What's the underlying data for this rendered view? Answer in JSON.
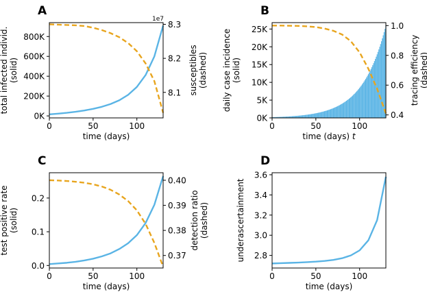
{
  "chart_data": [
    {
      "panel": "A",
      "type": "line",
      "xlabel": "time (days)",
      "ylabel": "total infected individ.\n(solid)",
      "y2label": "susceptibles\n(dashed)",
      "xlim": [
        0,
        130
      ],
      "ylim": [
        -20000,
        940000
      ],
      "y2lim": [
        8.025,
        8.305
      ],
      "xticks": [
        0,
        50,
        100
      ],
      "yticks": [
        0,
        200000,
        400000,
        600000,
        800000
      ],
      "yticklabels": [
        "0K",
        "200K",
        "400K",
        "600K",
        "800K"
      ],
      "y2ticks": [
        8.1,
        8.2,
        8.3
      ],
      "y2ticklabels": [
        "8.1",
        "8.2",
        "8.3"
      ],
      "y2offset": "1e7",
      "series": [
        {
          "name": "total infected (solid)",
          "color": "#5ab4e5",
          "style": "solid",
          "x": [
            0,
            10,
            20,
            30,
            40,
            50,
            60,
            70,
            80,
            90,
            100,
            110,
            120,
            130
          ],
          "values": [
            16000,
            23000,
            31500,
            42000,
            55000,
            71000,
            92000,
            120000,
            158000,
            212000,
            292000,
            412000,
            600000,
            910000
          ]
        },
        {
          "name": "susceptibles (dashed)",
          "color": "#e8a51e",
          "style": "dashed",
          "axis": "right",
          "x": [
            0,
            10,
            20,
            30,
            40,
            50,
            60,
            70,
            80,
            90,
            100,
            110,
            120,
            130
          ],
          "values": [
            8.3,
            8.299,
            8.298,
            8.297,
            8.295,
            8.29,
            8.283,
            8.274,
            8.262,
            8.245,
            8.221,
            8.185,
            8.133,
            8.04
          ]
        }
      ]
    },
    {
      "panel": "B",
      "type": "bar",
      "xlabel": "time (days) t",
      "ylabel": "daily case incidence\n(solid)",
      "y2label": "tracing efficiency\n(dashed)",
      "xlim": [
        0,
        130
      ],
      "ylim": [
        0,
        26800
      ],
      "y2lim": [
        0.38,
        1.02
      ],
      "xticks": [
        0,
        50,
        100
      ],
      "yticks": [
        0,
        5000,
        10000,
        15000,
        20000,
        25000
      ],
      "yticklabels": [
        "0K",
        "5K",
        "10K",
        "15K",
        "20K",
        "25K"
      ],
      "y2ticks": [
        0.4,
        0.6,
        0.8,
        1.0
      ],
      "y2ticklabels": [
        "0.4",
        "0.6",
        "0.8",
        "1.0"
      ],
      "bar_color": "#5ab4e5",
      "bars": {
        "x_start": 0,
        "x_end": 130,
        "value_at_start": 200,
        "value_at_end": 26000,
        "growth": "exponential"
      },
      "series": [
        {
          "name": "tracing efficiency (dashed)",
          "color": "#e8a51e",
          "style": "dashed",
          "axis": "right",
          "x": [
            0,
            10,
            20,
            30,
            40,
            50,
            60,
            70,
            80,
            90,
            100,
            110,
            120,
            130
          ],
          "values": [
            1.0,
            1.0,
            0.999,
            0.998,
            0.995,
            0.99,
            0.98,
            0.965,
            0.94,
            0.895,
            0.82,
            0.71,
            0.575,
            0.41
          ]
        }
      ]
    },
    {
      "panel": "C",
      "type": "line",
      "xlabel": "time (days)",
      "ylabel": "test positive rate\n(solid)",
      "y2label": "detection ratio\n(dashed)",
      "xlim": [
        0,
        130
      ],
      "ylim": [
        -0.0075,
        0.275
      ],
      "y2lim": [
        0.365,
        0.403
      ],
      "xticks": [
        0,
        50,
        100
      ],
      "yticks": [
        0.0,
        0.1,
        0.2
      ],
      "yticklabels": [
        "0.0",
        "0.1",
        "0.2"
      ],
      "y2ticks": [
        0.37,
        0.38,
        0.39,
        0.4
      ],
      "y2ticklabels": [
        "0.37",
        "0.38",
        "0.39",
        "0.40"
      ],
      "series": [
        {
          "name": "test positive rate (solid)",
          "color": "#5ab4e5",
          "style": "solid",
          "x": [
            0,
            10,
            20,
            30,
            40,
            50,
            60,
            70,
            80,
            90,
            100,
            110,
            120,
            130
          ],
          "values": [
            0.004,
            0.006,
            0.008,
            0.011,
            0.015,
            0.02,
            0.027,
            0.036,
            0.049,
            0.066,
            0.09,
            0.126,
            0.18,
            0.265
          ]
        },
        {
          "name": "detection ratio (dashed)",
          "color": "#e8a51e",
          "style": "dashed",
          "axis": "right",
          "x": [
            0,
            10,
            20,
            30,
            40,
            50,
            60,
            70,
            80,
            90,
            100,
            110,
            120,
            130
          ],
          "values": [
            0.4,
            0.3999,
            0.3997,
            0.3994,
            0.399,
            0.3984,
            0.3975,
            0.3962,
            0.3943,
            0.3917,
            0.388,
            0.3826,
            0.375,
            0.3655
          ]
        }
      ]
    },
    {
      "panel": "D",
      "type": "line",
      "xlabel": "time (days)",
      "ylabel": "underascertainment",
      "xlim": [
        0,
        130
      ],
      "ylim": [
        2.675,
        3.62
      ],
      "xticks": [
        0,
        50,
        100
      ],
      "yticks": [
        2.8,
        3.0,
        3.2,
        3.4,
        3.6
      ],
      "yticklabels": [
        "2.8",
        "3.0",
        "3.2",
        "3.4",
        "3.6"
      ],
      "series": [
        {
          "name": "underascertainment",
          "color": "#5ab4e5",
          "style": "solid",
          "x": [
            0,
            10,
            20,
            30,
            40,
            50,
            60,
            70,
            80,
            90,
            100,
            110,
            120,
            130
          ],
          "values": [
            2.72,
            2.723,
            2.726,
            2.729,
            2.733,
            2.738,
            2.745,
            2.755,
            2.772,
            2.8,
            2.85,
            2.95,
            3.15,
            3.58
          ]
        }
      ]
    }
  ]
}
